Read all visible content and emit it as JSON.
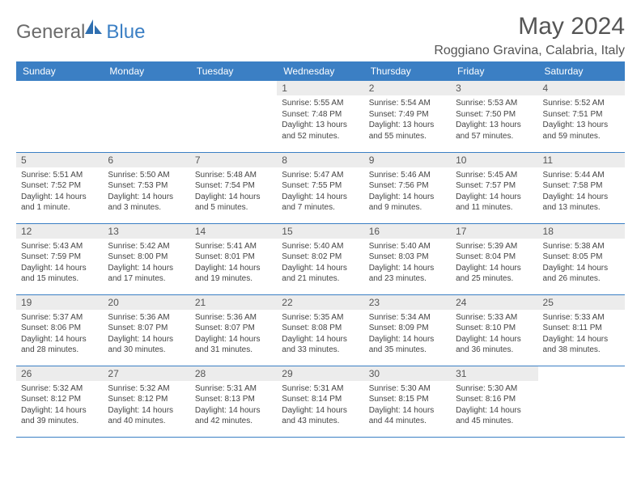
{
  "logo": {
    "text_part1": "General",
    "text_part2": "Blue",
    "icon_color": "#2f6fb0"
  },
  "header": {
    "month_title": "May 2024",
    "location": "Roggiano Gravina, Calabria, Italy"
  },
  "colors": {
    "header_bg": "#3b7fc4",
    "header_fg": "#ffffff",
    "daynum_bg": "#ececec",
    "border": "#3b7fc4"
  },
  "day_headers": [
    "Sunday",
    "Monday",
    "Tuesday",
    "Wednesday",
    "Thursday",
    "Friday",
    "Saturday"
  ],
  "weeks": [
    [
      null,
      null,
      null,
      {
        "n": "1",
        "sr": "Sunrise: 5:55 AM",
        "ss": "Sunset: 7:48 PM",
        "dl": "Daylight: 13 hours and 52 minutes."
      },
      {
        "n": "2",
        "sr": "Sunrise: 5:54 AM",
        "ss": "Sunset: 7:49 PM",
        "dl": "Daylight: 13 hours and 55 minutes."
      },
      {
        "n": "3",
        "sr": "Sunrise: 5:53 AM",
        "ss": "Sunset: 7:50 PM",
        "dl": "Daylight: 13 hours and 57 minutes."
      },
      {
        "n": "4",
        "sr": "Sunrise: 5:52 AM",
        "ss": "Sunset: 7:51 PM",
        "dl": "Daylight: 13 hours and 59 minutes."
      }
    ],
    [
      {
        "n": "5",
        "sr": "Sunrise: 5:51 AM",
        "ss": "Sunset: 7:52 PM",
        "dl": "Daylight: 14 hours and 1 minute."
      },
      {
        "n": "6",
        "sr": "Sunrise: 5:50 AM",
        "ss": "Sunset: 7:53 PM",
        "dl": "Daylight: 14 hours and 3 minutes."
      },
      {
        "n": "7",
        "sr": "Sunrise: 5:48 AM",
        "ss": "Sunset: 7:54 PM",
        "dl": "Daylight: 14 hours and 5 minutes."
      },
      {
        "n": "8",
        "sr": "Sunrise: 5:47 AM",
        "ss": "Sunset: 7:55 PM",
        "dl": "Daylight: 14 hours and 7 minutes."
      },
      {
        "n": "9",
        "sr": "Sunrise: 5:46 AM",
        "ss": "Sunset: 7:56 PM",
        "dl": "Daylight: 14 hours and 9 minutes."
      },
      {
        "n": "10",
        "sr": "Sunrise: 5:45 AM",
        "ss": "Sunset: 7:57 PM",
        "dl": "Daylight: 14 hours and 11 minutes."
      },
      {
        "n": "11",
        "sr": "Sunrise: 5:44 AM",
        "ss": "Sunset: 7:58 PM",
        "dl": "Daylight: 14 hours and 13 minutes."
      }
    ],
    [
      {
        "n": "12",
        "sr": "Sunrise: 5:43 AM",
        "ss": "Sunset: 7:59 PM",
        "dl": "Daylight: 14 hours and 15 minutes."
      },
      {
        "n": "13",
        "sr": "Sunrise: 5:42 AM",
        "ss": "Sunset: 8:00 PM",
        "dl": "Daylight: 14 hours and 17 minutes."
      },
      {
        "n": "14",
        "sr": "Sunrise: 5:41 AM",
        "ss": "Sunset: 8:01 PM",
        "dl": "Daylight: 14 hours and 19 minutes."
      },
      {
        "n": "15",
        "sr": "Sunrise: 5:40 AM",
        "ss": "Sunset: 8:02 PM",
        "dl": "Daylight: 14 hours and 21 minutes."
      },
      {
        "n": "16",
        "sr": "Sunrise: 5:40 AM",
        "ss": "Sunset: 8:03 PM",
        "dl": "Daylight: 14 hours and 23 minutes."
      },
      {
        "n": "17",
        "sr": "Sunrise: 5:39 AM",
        "ss": "Sunset: 8:04 PM",
        "dl": "Daylight: 14 hours and 25 minutes."
      },
      {
        "n": "18",
        "sr": "Sunrise: 5:38 AM",
        "ss": "Sunset: 8:05 PM",
        "dl": "Daylight: 14 hours and 26 minutes."
      }
    ],
    [
      {
        "n": "19",
        "sr": "Sunrise: 5:37 AM",
        "ss": "Sunset: 8:06 PM",
        "dl": "Daylight: 14 hours and 28 minutes."
      },
      {
        "n": "20",
        "sr": "Sunrise: 5:36 AM",
        "ss": "Sunset: 8:07 PM",
        "dl": "Daylight: 14 hours and 30 minutes."
      },
      {
        "n": "21",
        "sr": "Sunrise: 5:36 AM",
        "ss": "Sunset: 8:07 PM",
        "dl": "Daylight: 14 hours and 31 minutes."
      },
      {
        "n": "22",
        "sr": "Sunrise: 5:35 AM",
        "ss": "Sunset: 8:08 PM",
        "dl": "Daylight: 14 hours and 33 minutes."
      },
      {
        "n": "23",
        "sr": "Sunrise: 5:34 AM",
        "ss": "Sunset: 8:09 PM",
        "dl": "Daylight: 14 hours and 35 minutes."
      },
      {
        "n": "24",
        "sr": "Sunrise: 5:33 AM",
        "ss": "Sunset: 8:10 PM",
        "dl": "Daylight: 14 hours and 36 minutes."
      },
      {
        "n": "25",
        "sr": "Sunrise: 5:33 AM",
        "ss": "Sunset: 8:11 PM",
        "dl": "Daylight: 14 hours and 38 minutes."
      }
    ],
    [
      {
        "n": "26",
        "sr": "Sunrise: 5:32 AM",
        "ss": "Sunset: 8:12 PM",
        "dl": "Daylight: 14 hours and 39 minutes."
      },
      {
        "n": "27",
        "sr": "Sunrise: 5:32 AM",
        "ss": "Sunset: 8:12 PM",
        "dl": "Daylight: 14 hours and 40 minutes."
      },
      {
        "n": "28",
        "sr": "Sunrise: 5:31 AM",
        "ss": "Sunset: 8:13 PM",
        "dl": "Daylight: 14 hours and 42 minutes."
      },
      {
        "n": "29",
        "sr": "Sunrise: 5:31 AM",
        "ss": "Sunset: 8:14 PM",
        "dl": "Daylight: 14 hours and 43 minutes."
      },
      {
        "n": "30",
        "sr": "Sunrise: 5:30 AM",
        "ss": "Sunset: 8:15 PM",
        "dl": "Daylight: 14 hours and 44 minutes."
      },
      {
        "n": "31",
        "sr": "Sunrise: 5:30 AM",
        "ss": "Sunset: 8:16 PM",
        "dl": "Daylight: 14 hours and 45 minutes."
      },
      null
    ]
  ]
}
